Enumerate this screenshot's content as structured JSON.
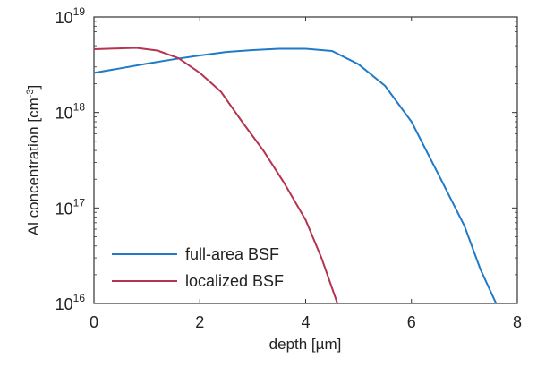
{
  "chart_data": {
    "type": "line",
    "xlabel": "depth [µm]",
    "ylabel": "Al concentration [cm",
    "ylabel_sup": "-3",
    "ylabel_suffix": "]",
    "xlim": [
      0,
      8
    ],
    "ylim": [
      1e+16,
      1e+19
    ],
    "yscale": "log",
    "grid": false,
    "legend_position": "bottom-left",
    "x_ticks": [
      {
        "value": 0,
        "label": "0"
      },
      {
        "value": 2,
        "label": "2"
      },
      {
        "value": 4,
        "label": "4"
      },
      {
        "value": 6,
        "label": "6"
      },
      {
        "value": 8,
        "label": "8"
      }
    ],
    "y_ticks": [
      {
        "value": 1e+16,
        "base": "10",
        "exp": "16"
      },
      {
        "value": 1e+17,
        "base": "10",
        "exp": "17"
      },
      {
        "value": 1e+18,
        "base": "10",
        "exp": "18"
      },
      {
        "value": 1e+19,
        "base": "10",
        "exp": "19"
      }
    ],
    "series": [
      {
        "name": "full-area BSF",
        "color": "#1f7ac8",
        "points": [
          [
            0,
            2.6e+18
          ],
          [
            0.5,
            2.9e+18
          ],
          [
            1.0,
            3.25e+18
          ],
          [
            1.5,
            3.6e+18
          ],
          [
            2.0,
            3.95e+18
          ],
          [
            2.5,
            4.3e+18
          ],
          [
            3.0,
            4.5e+18
          ],
          [
            3.5,
            4.65e+18
          ],
          [
            4.0,
            4.65e+18
          ],
          [
            4.5,
            4.4e+18
          ],
          [
            5.0,
            3.2e+18
          ],
          [
            5.5,
            1.9e+18
          ],
          [
            6.0,
            8e+17
          ],
          [
            6.5,
            2.3e+17
          ],
          [
            7.0,
            6.5e+16
          ],
          [
            7.3,
            2.3e+16
          ],
          [
            7.6,
            1e+16
          ]
        ]
      },
      {
        "name": "localized BSF",
        "color": "#b5344f",
        "points": [
          [
            0,
            4.6e+18
          ],
          [
            0.4,
            4.68e+18
          ],
          [
            0.8,
            4.75e+18
          ],
          [
            1.2,
            4.45e+18
          ],
          [
            1.6,
            3.7e+18
          ],
          [
            2.0,
            2.6e+18
          ],
          [
            2.4,
            1.65e+18
          ],
          [
            2.8,
            8e+17
          ],
          [
            3.2,
            4e+17
          ],
          [
            3.6,
            1.8e+17
          ],
          [
            4.0,
            7.5e+16
          ],
          [
            4.3,
            3e+16
          ],
          [
            4.6,
            1e+16
          ]
        ]
      }
    ]
  }
}
